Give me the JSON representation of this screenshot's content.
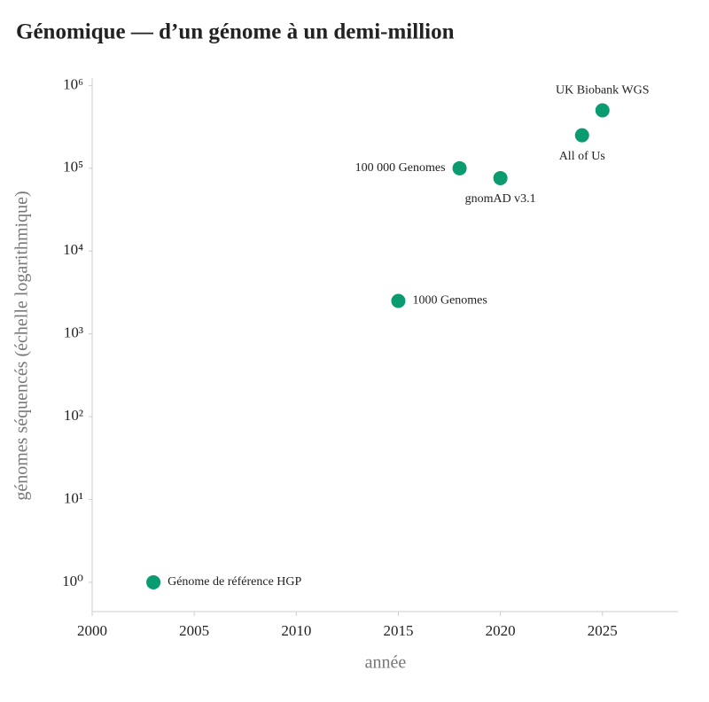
{
  "chart_data": {
    "type": "scatter",
    "title": "Génomique — d’un génome à un demi-million",
    "x_label": "année",
    "y_label": "génomes séquencés (échelle logarithmique)",
    "x": [
      2003,
      2015,
      2018,
      2020,
      2024,
      2025
    ],
    "values": [
      1,
      2500,
      100000,
      76000,
      250000,
      500000
    ],
    "point_labels": [
      "Génome de référence HGP",
      "1000 Genomes",
      "100 000 Genomes",
      "gnomAD v3.1",
      "All of Us",
      "UK Biobank WGS"
    ],
    "color": "#0a9b70",
    "y_log": true,
    "xlim": [
      2000,
      2028.7
    ],
    "ylim": [
      0.443,
      1230000
    ],
    "xticks": [
      2000,
      2005,
      2010,
      2015,
      2020,
      2025
    ],
    "yticks": [
      {
        "value": 1,
        "label": "10⁰"
      },
      {
        "value": 10,
        "label": "10¹"
      },
      {
        "value": 100,
        "label": "10²"
      },
      {
        "value": 1000,
        "label": "10³"
      },
      {
        "value": 10000,
        "label": "10⁴"
      },
      {
        "value": 100000,
        "label": "10⁵"
      },
      {
        "value": 1000000,
        "label": "10⁶"
      }
    ]
  }
}
